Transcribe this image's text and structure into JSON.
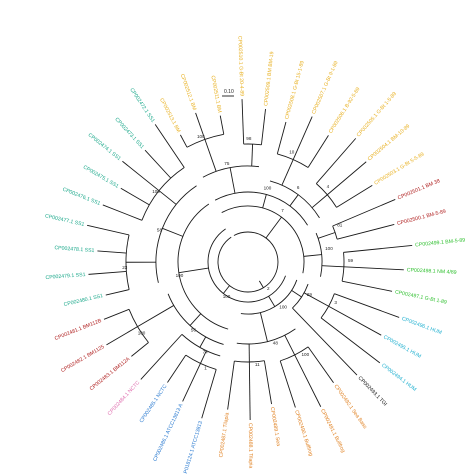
{
  "figure": {
    "scale_label": "0.10",
    "colors": {
      "branch": "#1a1a1a",
      "yellow": "#e8b020",
      "teal": "#1aa88a",
      "darkred": "#b02020",
      "pink": "#e070b0",
      "blue": "#2a7ad0",
      "orange": "#e08020",
      "cyan": "#20b0d0",
      "green": "#30c030",
      "black": "#111111"
    }
  },
  "tree": {
    "leaves": [
      {
        "label": "CP002513.1 BM",
        "color": "yellow"
      },
      {
        "label": "CP002512.1 BM",
        "color": "yellow"
      },
      {
        "label": "CP002511.1 BM",
        "color": "yellow"
      },
      {
        "label": "CP002510.1 G-Bt 20-4-89",
        "color": "yellow"
      },
      {
        "label": "CP002509.1 BM BM-19",
        "color": "yellow"
      },
      {
        "label": "CP002508.1 G-Bt 15-1-89",
        "color": "yellow"
      },
      {
        "label": "CP002507.1 G-Bt 9-1-89",
        "color": "yellow"
      },
      {
        "label": "CP002506.1 B-92-5-89",
        "color": "yellow"
      },
      {
        "label": "CP002505.1 G-Bt 1-5-89",
        "color": "yellow"
      },
      {
        "label": "CP002504.1 BM-10-89",
        "color": "yellow"
      },
      {
        "label": "CP002503.1 G-Bt 5-5-89",
        "color": "yellow"
      },
      {
        "label": "CP002501.1 BM 38",
        "color": "darkred"
      },
      {
        "label": "CP002500.1 BM-5-89",
        "color": "darkred"
      },
      {
        "label": "CP002499.1 BM-5-89",
        "color": "green"
      },
      {
        "label": "CP002498.1 NM 4/89",
        "color": "green"
      },
      {
        "label": "CP002497.1 G-Bt 1-89",
        "color": "green"
      },
      {
        "label": "CP002496.1 HUM",
        "color": "cyan"
      },
      {
        "label": "CP002495.1 HUM",
        "color": "cyan"
      },
      {
        "label": "CP002494.1 HUM",
        "color": "cyan"
      },
      {
        "label": "CP002493.1 TGI",
        "color": "black"
      },
      {
        "label": "CP002492.1 Sea Bass",
        "color": "orange"
      },
      {
        "label": "CP002491.1 Bullfrog",
        "color": "orange"
      },
      {
        "label": "CP002490.1 Bullfrog",
        "color": "orange"
      },
      {
        "label": "CP002489.1 Sea",
        "color": "orange"
      },
      {
        "label": "CP002488.1 Tilapia",
        "color": "orange"
      },
      {
        "label": "CP002487.1 Tilapia",
        "color": "orange"
      },
      {
        "label": "AP018124.1 ATCC13813",
        "color": "blue"
      },
      {
        "label": "CP002486.1 ATCC13813 A",
        "color": "blue"
      },
      {
        "label": "CP002485.1 NCTC",
        "color": "blue"
      },
      {
        "label": "CP002484.1 NCTC",
        "color": "pink"
      },
      {
        "label": "CP002483.1 BM112A",
        "color": "darkred"
      },
      {
        "label": "CP002482.1 BM1125",
        "color": "darkred"
      },
      {
        "label": "CP002481.1 BM112B",
        "color": "darkred"
      },
      {
        "label": "CP002480.1 SS1",
        "color": "teal"
      },
      {
        "label": "CP002479.1 SS1",
        "color": "teal"
      },
      {
        "label": "CP002478.1 SS1",
        "color": "teal"
      },
      {
        "label": "CP002477.1 SS1",
        "color": "teal"
      },
      {
        "label": "CP002476.1 SS1",
        "color": "teal"
      },
      {
        "label": "CP002475.1 SS1",
        "color": "teal"
      },
      {
        "label": "CP002474.1 SS1",
        "color": "teal"
      },
      {
        "label": "CP002473.1 SS1",
        "color": "teal"
      },
      {
        "label": "CP002472.1 SS1",
        "color": "teal"
      }
    ],
    "support_values": [
      "100",
      "98",
      "75",
      "10",
      "4",
      "6",
      "100",
      "81",
      "59",
      "100",
      "7",
      "3",
      "29",
      "100",
      "11",
      "48",
      "100",
      "1",
      "74",
      "100",
      "56",
      "23",
      "100",
      "58",
      "100",
      "100",
      "2",
      "41"
    ]
  }
}
